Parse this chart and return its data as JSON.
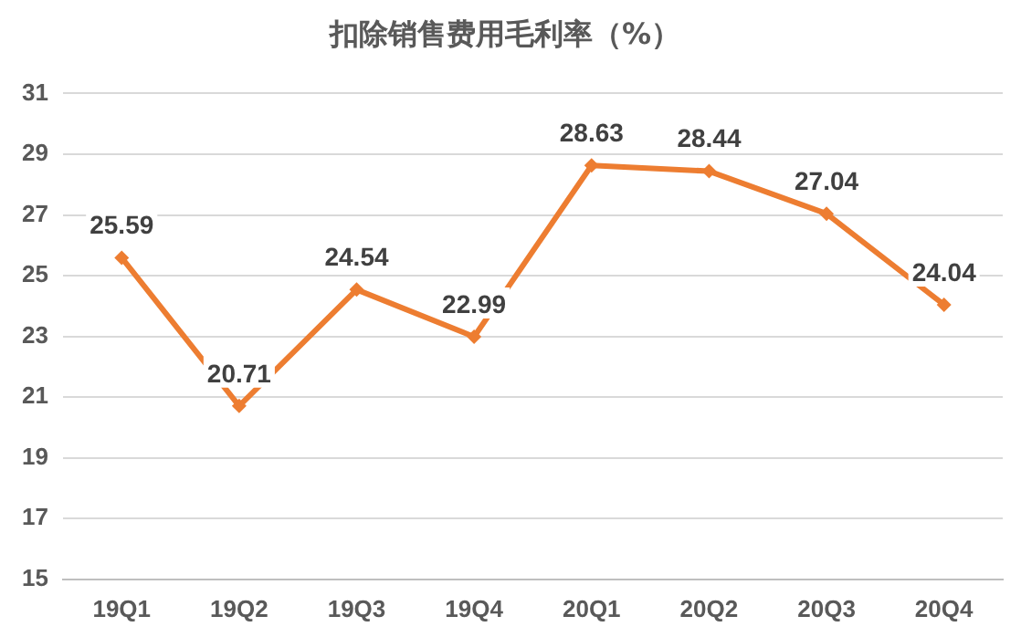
{
  "chart_data": {
    "type": "line",
    "title": "扣除销售费用毛利率（%）",
    "categories": [
      "19Q1",
      "19Q2",
      "19Q3",
      "19Q4",
      "20Q1",
      "20Q2",
      "20Q3",
      "20Q4"
    ],
    "series": [
      {
        "color": "#ed7d31",
        "values": [
          25.59,
          20.71,
          24.54,
          22.99,
          28.63,
          28.44,
          27.04,
          24.04
        ]
      }
    ],
    "ylim": [
      15,
      31
    ],
    "yticks": [
      15,
      17,
      19,
      21,
      23,
      25,
      27,
      29,
      31
    ],
    "grid": "y",
    "marker": "diamond",
    "line_style": "solid",
    "data_labels": true,
    "legend": false
  }
}
